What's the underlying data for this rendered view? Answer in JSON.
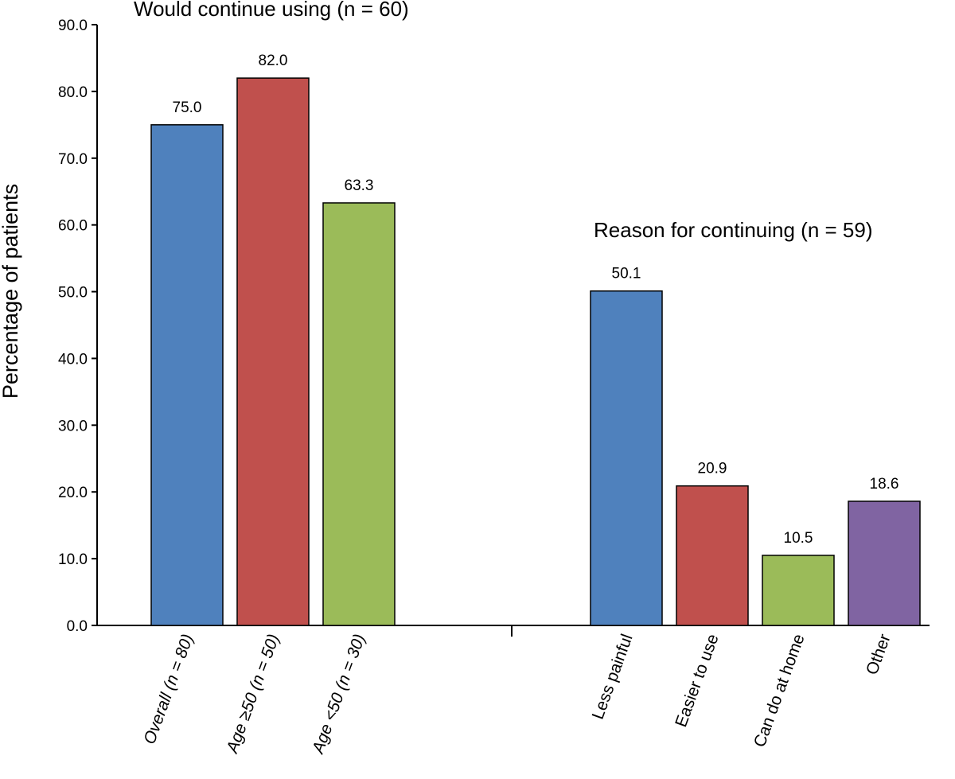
{
  "chart_data": {
    "type": "bar",
    "ylabel": "Percentage of patients",
    "ylim": [
      0,
      90
    ],
    "yticks": [
      "0.0",
      "10.0",
      "20.0",
      "30.0",
      "40.0",
      "50.0",
      "60.0",
      "70.0",
      "80.0",
      "90.0"
    ],
    "groups": [
      {
        "title": "Would continue using (n = 60)",
        "bars": [
          {
            "category": "Overall (n = 80)",
            "value": 75.0,
            "label": "75.0",
            "color": "#4f81bd",
            "italic_parts": [
              "n"
            ]
          },
          {
            "category": "Age ≥50 (n = 50)",
            "value": 82.0,
            "label": "82.0",
            "color": "#c0504d",
            "italic_parts": [
              "n"
            ]
          },
          {
            "category": "Age <50 (n = 30)",
            "value": 63.3,
            "label": "63.3",
            "color": "#9bbb59",
            "italic_parts": [
              "n"
            ]
          }
        ]
      },
      {
        "title": "Reason for continuing (n = 59)",
        "bars": [
          {
            "category": "Less painful",
            "value": 50.1,
            "label": "50.1",
            "color": "#4f81bd"
          },
          {
            "category": "Easier to use",
            "value": 20.9,
            "label": "20.9",
            "color": "#c0504d"
          },
          {
            "category": "Can do at home",
            "value": 10.5,
            "label": "10.5",
            "color": "#9bbb59"
          },
          {
            "category": "Other",
            "value": 18.6,
            "label": "18.6",
            "color": "#8064a2"
          }
        ]
      }
    ]
  }
}
